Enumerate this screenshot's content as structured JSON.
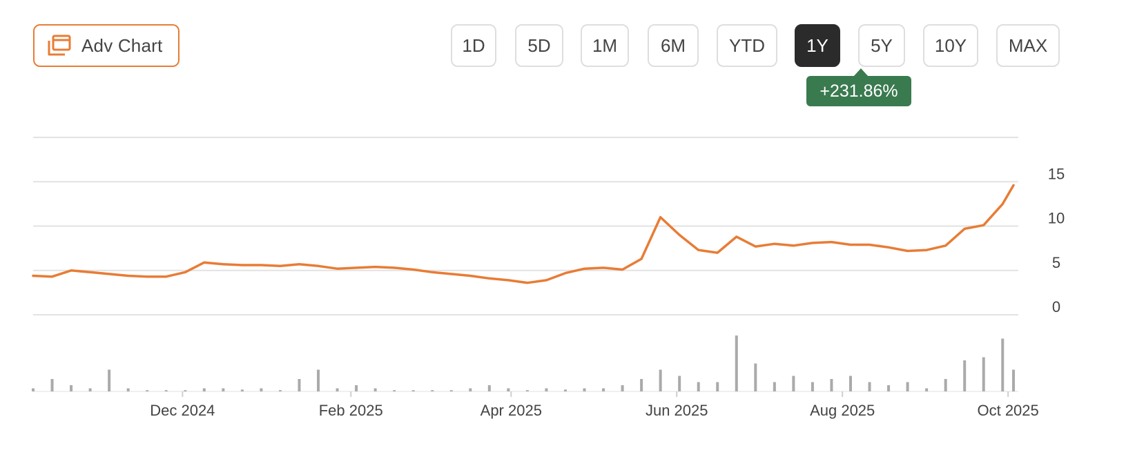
{
  "toolbar": {
    "adv_chart_label": "Adv Chart",
    "adv_chart_icon": "chart-window-icon",
    "accent_color": "#e87c35",
    "ranges": [
      "1D",
      "5D",
      "1M",
      "6M",
      "YTD",
      "1Y",
      "5Y",
      "10Y",
      "MAX"
    ],
    "active_range": "1Y"
  },
  "change_badge": {
    "text": "+231.86%",
    "color": "#3a7a4f"
  },
  "chart_data": {
    "type": "line",
    "title": "",
    "xlabel": "",
    "ylabel": "",
    "x_tick_labels": [
      "Dec 2024",
      "Feb 2025",
      "Apr 2025",
      "Jun 2025",
      "Aug 2025",
      "Oct 2025"
    ],
    "y_ticks": [
      0,
      5,
      10,
      15
    ],
    "ylim": [
      0,
      20
    ],
    "grid": true,
    "series": [
      {
        "color": "#e87c35",
        "x": [
          "2024-10-07",
          "2024-10-14",
          "2024-10-21",
          "2024-10-28",
          "2024-11-04",
          "2024-11-11",
          "2024-11-18",
          "2024-11-25",
          "2024-12-02",
          "2024-12-09",
          "2024-12-16",
          "2024-12-23",
          "2024-12-30",
          "2025-01-06",
          "2025-01-13",
          "2025-01-20",
          "2025-01-27",
          "2025-02-03",
          "2025-02-10",
          "2025-02-17",
          "2025-02-24",
          "2025-03-03",
          "2025-03-10",
          "2025-03-17",
          "2025-03-24",
          "2025-03-31",
          "2025-04-07",
          "2025-04-14",
          "2025-04-21",
          "2025-04-28",
          "2025-05-05",
          "2025-05-12",
          "2025-05-19",
          "2025-05-26",
          "2025-06-02",
          "2025-06-09",
          "2025-06-16",
          "2025-06-23",
          "2025-06-30",
          "2025-07-07",
          "2025-07-14",
          "2025-07-21",
          "2025-07-28",
          "2025-08-04",
          "2025-08-11",
          "2025-08-18",
          "2025-08-25",
          "2025-09-01",
          "2025-09-08",
          "2025-09-15",
          "2025-09-22",
          "2025-09-29",
          "2025-10-03"
        ],
        "values": [
          4.4,
          4.3,
          5.0,
          4.8,
          4.6,
          4.4,
          4.3,
          4.3,
          4.8,
          5.9,
          5.7,
          5.6,
          5.6,
          5.5,
          5.7,
          5.5,
          5.2,
          5.3,
          5.4,
          5.3,
          5.1,
          4.8,
          4.6,
          4.4,
          4.1,
          3.9,
          3.6,
          3.9,
          4.7,
          5.2,
          5.3,
          5.1,
          6.3,
          11.0,
          9.0,
          7.3,
          7.0,
          8.8,
          7.7,
          8.0,
          7.8,
          8.1,
          8.2,
          7.9,
          7.9,
          7.6,
          7.2,
          7.3,
          7.8,
          9.7,
          10.1,
          12.5,
          14.6
        ]
      }
    ],
    "volume": {
      "color": "#aaaaaa",
      "values": [
        0.05,
        0.2,
        0.1,
        0.05,
        0.35,
        0.05,
        0.02,
        0.02,
        0.02,
        0.05,
        0.05,
        0.03,
        0.05,
        0.02,
        0.2,
        0.35,
        0.05,
        0.1,
        0.05,
        0.02,
        0.02,
        0.02,
        0.02,
        0.05,
        0.1,
        0.05,
        0.02,
        0.05,
        0.03,
        0.05,
        0.05,
        0.1,
        0.2,
        0.35,
        0.25,
        0.15,
        0.15,
        0.9,
        0.45,
        0.15,
        0.25,
        0.15,
        0.2,
        0.25,
        0.15,
        0.1,
        0.15,
        0.05,
        0.2,
        0.5,
        0.55,
        0.85,
        0.35
      ]
    }
  }
}
